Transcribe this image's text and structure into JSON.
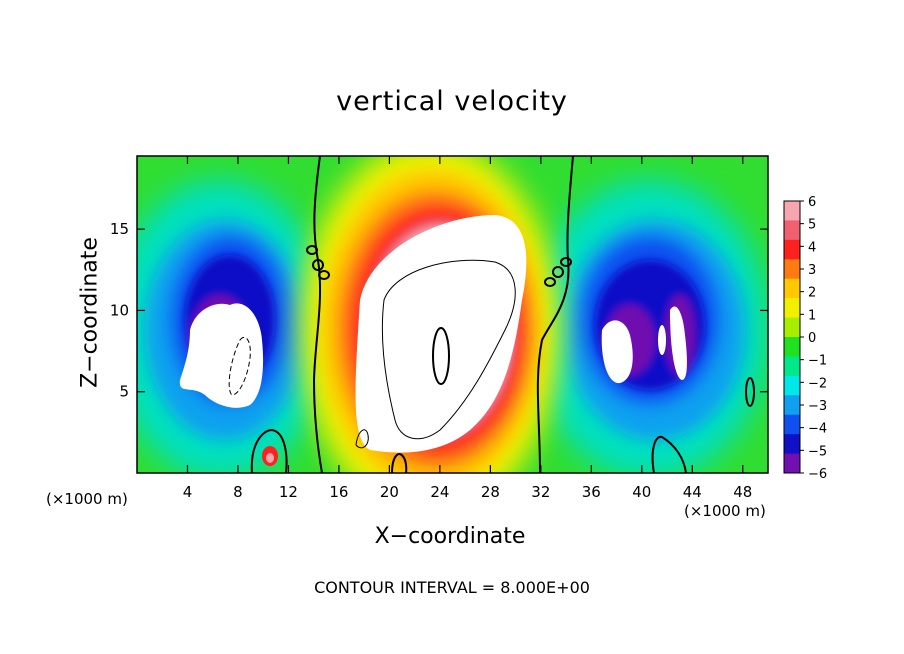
{
  "chart_data": {
    "type": "heatmap",
    "title": "vertical velocity",
    "xlabel": "X−coordinate",
    "ylabel": "Z−coordinate",
    "x_unit_label": "(×1000 m)",
    "footnote": "CONTOUR INTERVAL = 8.000E+00",
    "xlim": [
      0,
      50
    ],
    "ylim": [
      0,
      19.5
    ],
    "x_ticks": [
      "4",
      "8",
      "12",
      "16",
      "20",
      "24",
      "28",
      "32",
      "36",
      "40",
      "44",
      "48"
    ],
    "y_ticks": [
      "5",
      "10",
      "15"
    ],
    "colorbar": {
      "range": [
        -6,
        6
      ],
      "tick_labels": [
        "6",
        "5",
        "4",
        "3",
        "2",
        "1",
        "0",
        "−1",
        "−2",
        "−3",
        "−4",
        "−5",
        "−6"
      ],
      "colors": [
        "#f7a6b0",
        "#f06070",
        "#ff2020",
        "#ff7a10",
        "#ffc800",
        "#f0f000",
        "#a8ee00",
        "#20e020",
        "#00e88a",
        "#00e8e8",
        "#10a0f0",
        "#1050f0",
        "#1010c8",
        "#7010b0"
      ]
    },
    "features": [
      {
        "name": "central updraft",
        "x": 24,
        "z": 10,
        "w_max": ">6"
      },
      {
        "name": "left downdraft",
        "x": 7,
        "z": 9,
        "w_min": "<-6"
      },
      {
        "name": "right downdraft",
        "x": 40,
        "z": 9,
        "w_min": "<-6"
      }
    ]
  }
}
